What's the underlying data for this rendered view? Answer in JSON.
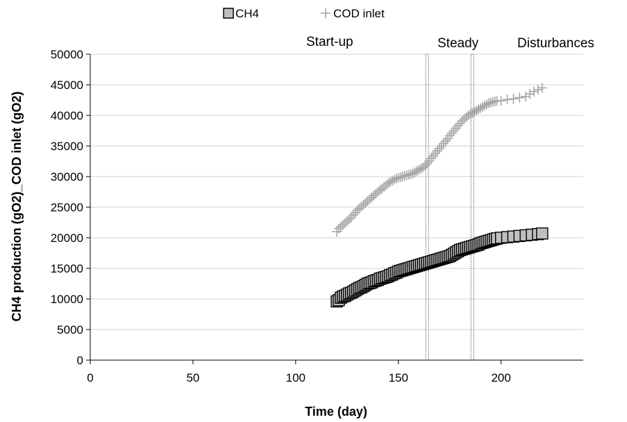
{
  "chart_data": {
    "type": "scatter",
    "xlabel": "Time (day)",
    "ylabel": "CH4 production (gO2)_COD inlet (gO2)",
    "xlim": [
      0,
      240
    ],
    "ylim": [
      0,
      50000
    ],
    "x_ticks": [
      0,
      50,
      100,
      150,
      200
    ],
    "y_ticks": [
      0,
      5000,
      10000,
      15000,
      20000,
      25000,
      30000,
      35000,
      40000,
      45000,
      50000
    ],
    "grid": "horizontal",
    "legend_position": "top",
    "phase_boundaries": [
      164,
      186
    ],
    "phase_labels": [
      "Start-up",
      "Steady",
      "Disturbances"
    ],
    "series": [
      {
        "name": "CH4",
        "marker": "square",
        "color": "#bfbfbf",
        "edge_color": "#000000",
        "points": [
          [
            120,
            9600
          ],
          [
            121,
            9800
          ],
          [
            122,
            10200
          ],
          [
            123,
            10400
          ],
          [
            124,
            10500
          ],
          [
            125,
            10700
          ],
          [
            126,
            10900
          ],
          [
            127,
            11000
          ],
          [
            128,
            11200
          ],
          [
            129,
            11400
          ],
          [
            130,
            11600
          ],
          [
            131,
            11800
          ],
          [
            132,
            11900
          ],
          [
            133,
            12100
          ],
          [
            134,
            12300
          ],
          [
            135,
            12500
          ],
          [
            136,
            12600
          ],
          [
            137,
            12700
          ],
          [
            138,
            12900
          ],
          [
            139,
            13000
          ],
          [
            140,
            13100
          ],
          [
            141,
            13300
          ],
          [
            142,
            13400
          ],
          [
            143,
            13500
          ],
          [
            144,
            13600
          ],
          [
            145,
            13700
          ],
          [
            146,
            13900
          ],
          [
            147,
            14000
          ],
          [
            148,
            14200
          ],
          [
            149,
            14300
          ],
          [
            150,
            14500
          ],
          [
            151,
            14600
          ],
          [
            152,
            14700
          ],
          [
            153,
            14800
          ],
          [
            154,
            14900
          ],
          [
            155,
            15000
          ],
          [
            156,
            15100
          ],
          [
            157,
            15200
          ],
          [
            158,
            15300
          ],
          [
            159,
            15400
          ],
          [
            160,
            15500
          ],
          [
            161,
            15600
          ],
          [
            162,
            15700
          ],
          [
            163,
            15800
          ],
          [
            164,
            15900
          ],
          [
            165,
            16000
          ],
          [
            166,
            16100
          ],
          [
            167,
            16200
          ],
          [
            168,
            16300
          ],
          [
            169,
            16400
          ],
          [
            170,
            16500
          ],
          [
            171,
            16600
          ],
          [
            172,
            16700
          ],
          [
            173,
            16800
          ],
          [
            174,
            16900
          ],
          [
            175,
            17000
          ],
          [
            176,
            17200
          ],
          [
            177,
            17400
          ],
          [
            178,
            17600
          ],
          [
            179,
            17800
          ],
          [
            180,
            18000
          ],
          [
            181,
            18100
          ],
          [
            182,
            18200
          ],
          [
            183,
            18300
          ],
          [
            184,
            18400
          ],
          [
            185,
            18500
          ],
          [
            186,
            18600
          ],
          [
            187,
            18700
          ],
          [
            188,
            18800
          ],
          [
            189,
            18900
          ],
          [
            190,
            19100
          ],
          [
            191,
            19200
          ],
          [
            192,
            19300
          ],
          [
            193,
            19400
          ],
          [
            194,
            19500
          ],
          [
            195,
            19600
          ],
          [
            196,
            19700
          ],
          [
            197,
            19800
          ],
          [
            198,
            19900
          ],
          [
            200,
            20000
          ],
          [
            203,
            20100
          ],
          [
            206,
            20200
          ],
          [
            209,
            20300
          ],
          [
            212,
            20400
          ],
          [
            215,
            20500
          ],
          [
            218,
            20600
          ],
          [
            220,
            20700
          ]
        ]
      },
      {
        "name": "COD inlet",
        "marker": "plus",
        "color": "#a6a6a6",
        "points": [
          [
            120,
            21000
          ],
          [
            121,
            21500
          ],
          [
            122,
            21800
          ],
          [
            123,
            22100
          ],
          [
            124,
            22400
          ],
          [
            125,
            22700
          ],
          [
            126,
            23000
          ],
          [
            127,
            23300
          ],
          [
            128,
            23700
          ],
          [
            129,
            24100
          ],
          [
            130,
            24500
          ],
          [
            131,
            24800
          ],
          [
            132,
            25100
          ],
          [
            133,
            25400
          ],
          [
            134,
            25700
          ],
          [
            135,
            26000
          ],
          [
            136,
            26300
          ],
          [
            137,
            26600
          ],
          [
            138,
            26900
          ],
          [
            139,
            27200
          ],
          [
            140,
            27500
          ],
          [
            141,
            27800
          ],
          [
            142,
            28000
          ],
          [
            143,
            28300
          ],
          [
            144,
            28600
          ],
          [
            145,
            28900
          ],
          [
            146,
            29100
          ],
          [
            147,
            29300
          ],
          [
            148,
            29500
          ],
          [
            149,
            29700
          ],
          [
            150,
            29800
          ],
          [
            151,
            29900
          ],
          [
            152,
            30000
          ],
          [
            153,
            30100
          ],
          [
            154,
            30200
          ],
          [
            155,
            30300
          ],
          [
            156,
            30400
          ],
          [
            157,
            30500
          ],
          [
            158,
            30700
          ],
          [
            159,
            30900
          ],
          [
            160,
            31100
          ],
          [
            161,
            31300
          ],
          [
            162,
            31500
          ],
          [
            163,
            31800
          ],
          [
            164,
            32100
          ],
          [
            165,
            32500
          ],
          [
            166,
            33000
          ],
          [
            167,
            33400
          ],
          [
            168,
            33800
          ],
          [
            169,
            34200
          ],
          [
            170,
            34600
          ],
          [
            171,
            35000
          ],
          [
            172,
            35400
          ],
          [
            173,
            35800
          ],
          [
            174,
            36200
          ],
          [
            175,
            36700
          ],
          [
            176,
            37100
          ],
          [
            177,
            37500
          ],
          [
            178,
            37900
          ],
          [
            179,
            38300
          ],
          [
            180,
            38700
          ],
          [
            181,
            39100
          ],
          [
            182,
            39400
          ],
          [
            183,
            39700
          ],
          [
            184,
            40000
          ],
          [
            185,
            40200
          ],
          [
            186,
            40400
          ],
          [
            187,
            40600
          ],
          [
            188,
            40800
          ],
          [
            189,
            41000
          ],
          [
            190,
            41200
          ],
          [
            191,
            41400
          ],
          [
            192,
            41600
          ],
          [
            193,
            41800
          ],
          [
            194,
            42000
          ],
          [
            195,
            42100
          ],
          [
            196,
            42200
          ],
          [
            197,
            42300
          ],
          [
            198,
            42400
          ],
          [
            200,
            42400
          ],
          [
            203,
            42600
          ],
          [
            206,
            42700
          ],
          [
            209,
            42900
          ],
          [
            212,
            43100
          ],
          [
            214,
            43500
          ],
          [
            216,
            43900
          ],
          [
            218,
            44200
          ],
          [
            220,
            44500
          ]
        ]
      }
    ]
  }
}
